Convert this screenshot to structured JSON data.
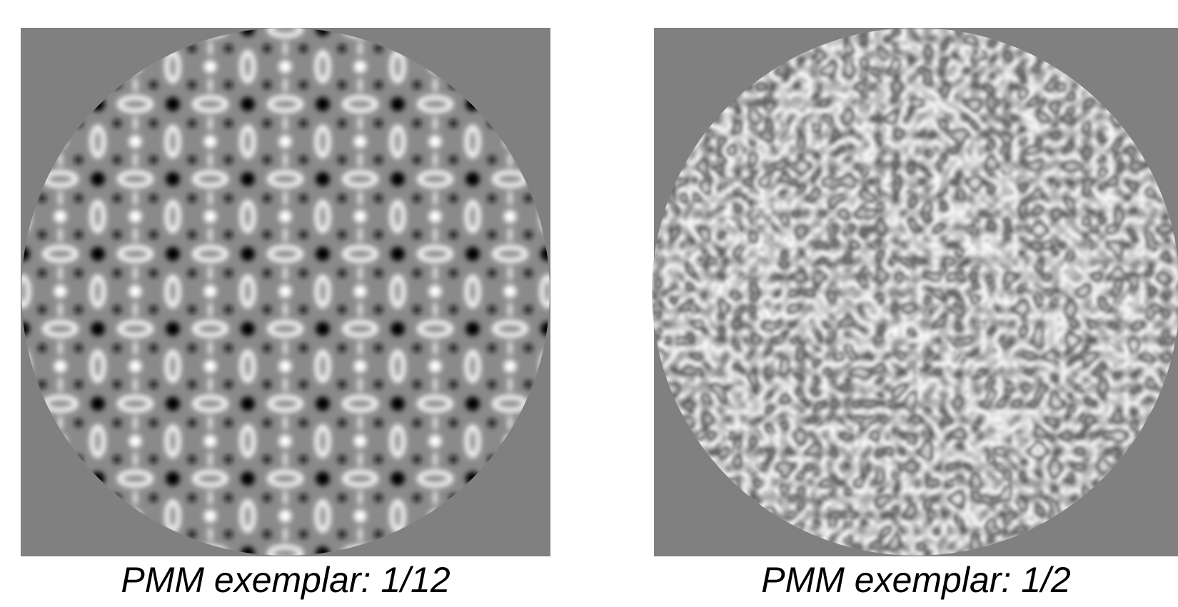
{
  "panels": [
    {
      "caption": "PMM exemplar: 1/12"
    },
    {
      "caption": "PMM exemplar: 1/2"
    }
  ]
}
